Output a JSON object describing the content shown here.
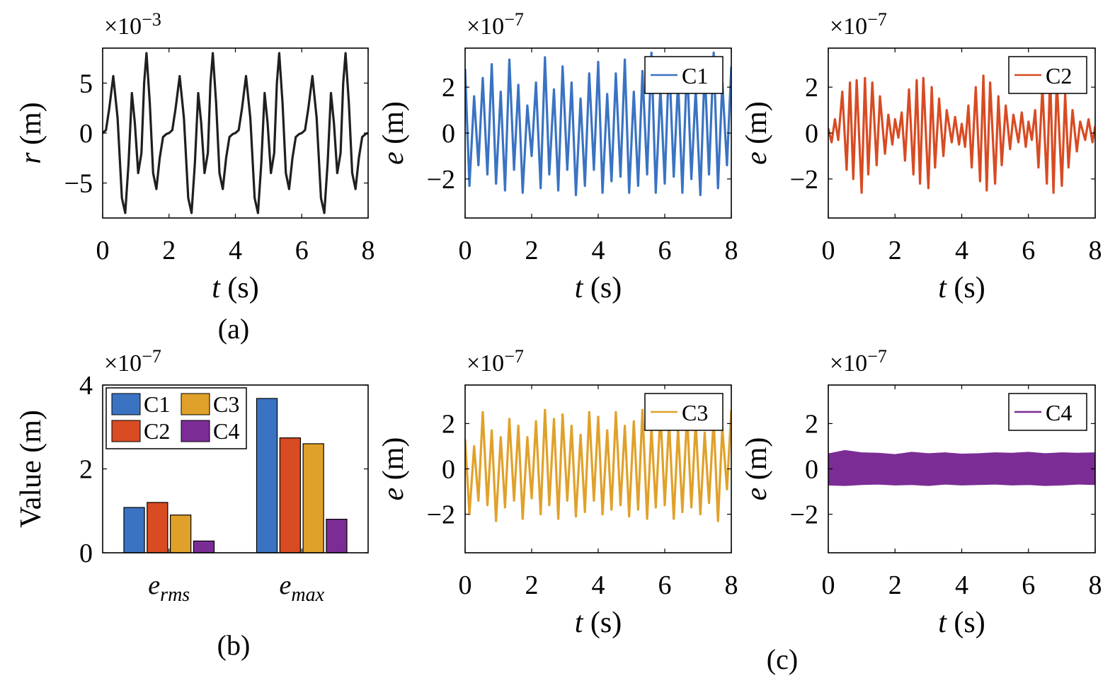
{
  "colors": {
    "reference": "#1f1f1f",
    "C1": "#3a73c2",
    "C2": "#d84b23",
    "C3": "#e0a12a",
    "C4": "#7b2d95"
  },
  "panel_labels": {
    "a": "(a)",
    "b": "(b)",
    "c": "(c)"
  },
  "chart_data": [
    {
      "type": "line",
      "id": "a",
      "xlabel_var": "t",
      "xlabel_unit": " (s)",
      "ylabel_var": "r",
      "ylabel_unit": " (m)",
      "multiplier_base": "×10",
      "multiplier_exp": "−3",
      "xlim": [
        0,
        8
      ],
      "ylim": [
        -8.5,
        8.5
      ],
      "xticks": [
        0,
        2,
        4,
        6,
        8
      ],
      "xtick_labels": [
        "0",
        "2",
        "4",
        "6",
        "8"
      ],
      "yticks": [
        5,
        0,
        -5
      ],
      "ytick_labels": [
        "5",
        "0",
        "−5"
      ],
      "series": [
        {
          "color_key": "reference",
          "x": [
            0,
            0.1,
            0.2,
            0.32,
            0.45,
            0.58,
            0.68,
            0.78,
            0.88,
            0.97,
            1.07,
            1.17,
            1.25,
            1.32,
            1.42,
            1.52,
            1.62,
            1.72,
            1.82,
            1.92,
            2.0,
            2.1,
            2.2,
            2.32,
            2.45,
            2.58,
            2.68,
            2.78,
            2.88,
            2.97,
            3.07,
            3.17,
            3.25,
            3.32,
            3.42,
            3.52,
            3.62,
            3.72,
            3.82,
            3.92,
            4.0,
            4.1,
            4.2,
            4.32,
            4.45,
            4.58,
            4.68,
            4.78,
            4.88,
            4.97,
            5.07,
            5.17,
            5.25,
            5.32,
            5.42,
            5.52,
            5.62,
            5.72,
            5.82,
            5.92,
            6.0,
            6.1,
            6.2,
            6.32,
            6.45,
            6.58,
            6.68,
            6.78,
            6.88,
            6.97,
            7.07,
            7.17,
            7.25,
            7.32,
            7.42,
            7.52,
            7.62,
            7.72,
            7.82,
            7.92,
            8.0
          ],
          "y": [
            0,
            0.3,
            2.5,
            5.7,
            1.5,
            -6.5,
            -8.0,
            -3.0,
            4.0,
            1.0,
            -4.0,
            -2.0,
            5.0,
            8.0,
            3.0,
            -4.0,
            -5.6,
            -2.5,
            -0.4,
            -0.1,
            0,
            0.3,
            2.5,
            5.7,
            1.5,
            -6.5,
            -8.0,
            -3.0,
            4.0,
            1.0,
            -4.0,
            -2.0,
            5.0,
            8.0,
            3.0,
            -4.0,
            -5.6,
            -2.5,
            -0.4,
            -0.1,
            0,
            0.3,
            2.5,
            5.7,
            1.5,
            -6.5,
            -8.0,
            -3.0,
            4.0,
            1.0,
            -4.0,
            -2.0,
            5.0,
            8.0,
            3.0,
            -4.0,
            -5.6,
            -2.5,
            -0.4,
            -0.1,
            0,
            0.3,
            2.5,
            5.7,
            1.5,
            -6.5,
            -8.0,
            -3.0,
            4.0,
            1.0,
            -4.0,
            -2.0,
            5.0,
            8.0,
            3.0,
            -4.0,
            -5.6,
            -2.5,
            -0.4,
            -0.1,
            0
          ]
        }
      ]
    },
    {
      "type": "line",
      "id": "c1",
      "xlabel_var": "t",
      "xlabel_unit": " (s)",
      "ylabel_var": "e",
      "ylabel_unit": " (m)",
      "multiplier_base": "×10",
      "multiplier_exp": "−7",
      "xlim": [
        0,
        8
      ],
      "ylim": [
        -3.7,
        3.7
      ],
      "xticks": [
        0,
        2,
        4,
        6,
        8
      ],
      "xtick_labels": [
        "0",
        "2",
        "4",
        "6",
        "8"
      ],
      "yticks": [
        2,
        0,
        -2
      ],
      "ytick_labels": [
        "2",
        "0",
        "−2"
      ],
      "legend": "C1",
      "legend_position": "top-right",
      "series": [
        {
          "name": "C1",
          "color_key": "C1",
          "x": [
            0,
            0.13,
            0.27,
            0.4,
            0.53,
            0.67,
            0.8,
            0.93,
            1.07,
            1.2,
            1.33,
            1.47,
            1.6,
            1.73,
            1.87,
            2.0,
            2.13,
            2.27,
            2.4,
            2.53,
            2.67,
            2.8,
            2.93,
            3.07,
            3.2,
            3.33,
            3.47,
            3.6,
            3.73,
            3.87,
            4.0,
            4.13,
            4.27,
            4.4,
            4.53,
            4.67,
            4.8,
            4.93,
            5.07,
            5.2,
            5.33,
            5.47,
            5.6,
            5.73,
            5.87,
            6.0,
            6.13,
            6.27,
            6.4,
            6.53,
            6.67,
            6.8,
            6.93,
            7.07,
            7.2,
            7.33,
            7.47,
            7.6,
            7.73,
            7.87,
            8.0
          ],
          "y": [
            2.8,
            -2.3,
            1.6,
            -1.4,
            2.4,
            -1.8,
            3.0,
            -2.2,
            1.8,
            -2.5,
            3.2,
            -1.6,
            2.1,
            -2.6,
            1.2,
            -1.0,
            2.2,
            -2.4,
            3.3,
            -1.8,
            1.9,
            -2.5,
            2.9,
            -1.6,
            2.2,
            -2.7,
            1.5,
            -2.3,
            2.6,
            -1.6,
            3.1,
            -2.6,
            1.7,
            -2.1,
            2.6,
            -1.9,
            3.2,
            -2.6,
            1.8,
            -2.3,
            2.7,
            -1.8,
            3.5,
            -2.6,
            2.0,
            -2.2,
            3.3,
            -1.9,
            2.3,
            -2.6,
            3.1,
            -2.0,
            1.9,
            -2.7,
            2.9,
            -1.8,
            3.5,
            -2.4,
            2.2,
            -1.4,
            2.9
          ]
        }
      ]
    },
    {
      "type": "line",
      "id": "c2",
      "xlabel_var": "t",
      "xlabel_unit": " (s)",
      "ylabel_var": "e",
      "ylabel_unit": " (m)",
      "multiplier_base": "×10",
      "multiplier_exp": "−7",
      "xlim": [
        0,
        8
      ],
      "ylim": [
        -3.7,
        3.7
      ],
      "xticks": [
        0,
        2,
        4,
        6,
        8
      ],
      "xtick_labels": [
        "0",
        "2",
        "4",
        "6",
        "8"
      ],
      "yticks": [
        2,
        0,
        -2
      ],
      "ytick_labels": [
        "2",
        "0",
        "−2"
      ],
      "legend": "C2",
      "legend_position": "top-right",
      "series": [
        {
          "name": "C2",
          "color_key": "C2",
          "x": [
            0,
            0.1,
            0.2,
            0.3,
            0.42,
            0.55,
            0.65,
            0.75,
            0.85,
            1.0,
            1.1,
            1.2,
            1.32,
            1.45,
            1.55,
            1.7,
            1.8,
            1.92,
            2.0,
            2.1,
            2.2,
            2.3,
            2.42,
            2.55,
            2.65,
            2.75,
            2.85,
            3.0,
            3.1,
            3.2,
            3.32,
            3.45,
            3.55,
            3.7,
            3.8,
            3.92,
            4.0,
            4.1,
            4.2,
            4.3,
            4.42,
            4.55,
            4.65,
            4.75,
            4.85,
            5.0,
            5.1,
            5.2,
            5.32,
            5.45,
            5.55,
            5.7,
            5.8,
            5.92,
            6.0,
            6.1,
            6.2,
            6.3,
            6.42,
            6.55,
            6.65,
            6.75,
            6.85,
            7.0,
            7.1,
            7.2,
            7.32,
            7.45,
            7.55,
            7.7,
            7.8,
            7.92,
            8.0
          ],
          "y": [
            0.2,
            -0.4,
            0.6,
            -0.3,
            1.8,
            -1.6,
            2.2,
            -2.0,
            2.3,
            -2.6,
            2.4,
            -1.8,
            2.2,
            -1.4,
            1.6,
            -0.9,
            0.8,
            -0.5,
            0.6,
            -0.2,
            0.9,
            -1.2,
            1.9,
            -1.8,
            2.3,
            -2.2,
            2.4,
            -2.4,
            2.0,
            -1.5,
            1.5,
            -1.0,
            1.0,
            -0.4,
            0.7,
            -0.5,
            0.4,
            -0.6,
            1.2,
            -1.5,
            2.0,
            -2.1,
            2.5,
            -2.5,
            2.2,
            -2.2,
            1.6,
            -1.4,
            1.2,
            -0.7,
            0.8,
            -0.4,
            0.9,
            -0.6,
            0.5,
            -0.3,
            1.0,
            -1.5,
            2.0,
            -2.2,
            2.5,
            -2.6,
            2.3,
            -2.3,
            1.7,
            -1.5,
            1.0,
            -0.8,
            0.5,
            -0.3,
            0.6,
            -0.4,
            0.3
          ]
        }
      ]
    },
    {
      "type": "bar",
      "id": "b",
      "ylabel": "Value (m)",
      "multiplier_base": "×10",
      "multiplier_exp": "−7",
      "categories": [
        {
          "base": "e",
          "sub": "rms"
        },
        {
          "base": "e",
          "sub": "max"
        }
      ],
      "ylim": [
        0,
        4
      ],
      "yticks": [
        4,
        2,
        0
      ],
      "ytick_labels": [
        "4",
        "2",
        "0"
      ],
      "legend_position": "top-left",
      "series": [
        {
          "name": "C1",
          "color_key": "C1",
          "values": [
            1.08,
            3.68
          ]
        },
        {
          "name": "C2",
          "color_key": "C2",
          "values": [
            1.2,
            2.74
          ]
        },
        {
          "name": "C3",
          "color_key": "C3",
          "values": [
            0.9,
            2.6
          ]
        },
        {
          "name": "C4",
          "color_key": "C4",
          "values": [
            0.28,
            0.8
          ]
        }
      ]
    },
    {
      "type": "line",
      "id": "c3",
      "xlabel_var": "t",
      "xlabel_unit": " (s)",
      "ylabel_var": "e",
      "ylabel_unit": " (m)",
      "multiplier_base": "×10",
      "multiplier_exp": "−7",
      "xlim": [
        0,
        8
      ],
      "ylim": [
        -3.7,
        3.7
      ],
      "xticks": [
        0,
        2,
        4,
        6,
        8
      ],
      "xtick_labels": [
        "0",
        "2",
        "4",
        "6",
        "8"
      ],
      "yticks": [
        2,
        0,
        -2
      ],
      "ytick_labels": [
        "2",
        "0",
        "−2"
      ],
      "legend": "C3",
      "legend_position": "top-right",
      "series": [
        {
          "name": "C3",
          "color_key": "C3",
          "x": [
            0,
            0.13,
            0.27,
            0.4,
            0.53,
            0.67,
            0.8,
            0.93,
            1.07,
            1.2,
            1.33,
            1.47,
            1.6,
            1.73,
            1.87,
            2.0,
            2.13,
            2.27,
            2.4,
            2.53,
            2.67,
            2.8,
            2.93,
            3.07,
            3.2,
            3.33,
            3.47,
            3.6,
            3.73,
            3.87,
            4.0,
            4.13,
            4.27,
            4.4,
            4.53,
            4.67,
            4.8,
            4.93,
            5.07,
            5.2,
            5.33,
            5.47,
            5.6,
            5.73,
            5.87,
            6.0,
            6.13,
            6.27,
            6.4,
            6.53,
            6.67,
            6.8,
            6.93,
            7.07,
            7.2,
            7.33,
            7.47,
            7.6,
            7.73,
            7.87,
            8.0
          ],
          "y": [
            1.3,
            -2.0,
            1.0,
            -1.4,
            2.5,
            -1.6,
            1.7,
            -2.3,
            1.4,
            -1.7,
            2.2,
            -1.4,
            1.9,
            -2.2,
            1.4,
            -1.3,
            2.1,
            -2.0,
            2.6,
            -1.6,
            2.2,
            -2.2,
            2.4,
            -1.4,
            1.9,
            -2.1,
            1.5,
            -1.9,
            2.5,
            -1.4,
            2.3,
            -2.0,
            1.7,
            -1.8,
            2.5,
            -1.6,
            1.9,
            -2.1,
            2.1,
            -1.8,
            2.6,
            -2.2,
            1.8,
            -1.7,
            2.5,
            -1.6,
            2.1,
            -2.2,
            1.8,
            -1.9,
            2.4,
            -1.7,
            2.1,
            -2.0,
            1.6,
            -1.5,
            2.2,
            -2.3,
            1.8,
            -0.9,
            2.6
          ]
        }
      ]
    },
    {
      "type": "area",
      "id": "c4",
      "xlabel_var": "t",
      "xlabel_unit": " (s)",
      "ylabel_var": "e",
      "ylabel_unit": " (m)",
      "multiplier_base": "×10",
      "multiplier_exp": "−7",
      "xlim": [
        0,
        8
      ],
      "ylim": [
        -3.7,
        3.7
      ],
      "xticks": [
        0,
        2,
        4,
        6,
        8
      ],
      "xtick_labels": [
        "0",
        "2",
        "4",
        "6",
        "8"
      ],
      "yticks": [
        2,
        0,
        -2
      ],
      "ytick_labels": [
        "2",
        "0",
        "−2"
      ],
      "legend": "C4",
      "legend_position": "top-right",
      "series": [
        {
          "name": "C4",
          "color_key": "C4",
          "x": [
            0,
            0.5,
            1.0,
            1.5,
            2.0,
            2.5,
            3.0,
            3.5,
            4.0,
            4.5,
            5.0,
            5.5,
            6.0,
            6.5,
            7.0,
            7.5,
            8.0
          ],
          "upper": [
            0.65,
            0.8,
            0.7,
            0.68,
            0.62,
            0.72,
            0.66,
            0.7,
            0.64,
            0.66,
            0.7,
            0.68,
            0.72,
            0.66,
            0.7,
            0.68,
            0.7
          ],
          "lower": [
            -0.7,
            -0.72,
            -0.68,
            -0.66,
            -0.7,
            -0.68,
            -0.72,
            -0.66,
            -0.7,
            -0.68,
            -0.66,
            -0.7,
            -0.68,
            -0.72,
            -0.7,
            -0.66,
            -0.68
          ]
        }
      ]
    }
  ]
}
